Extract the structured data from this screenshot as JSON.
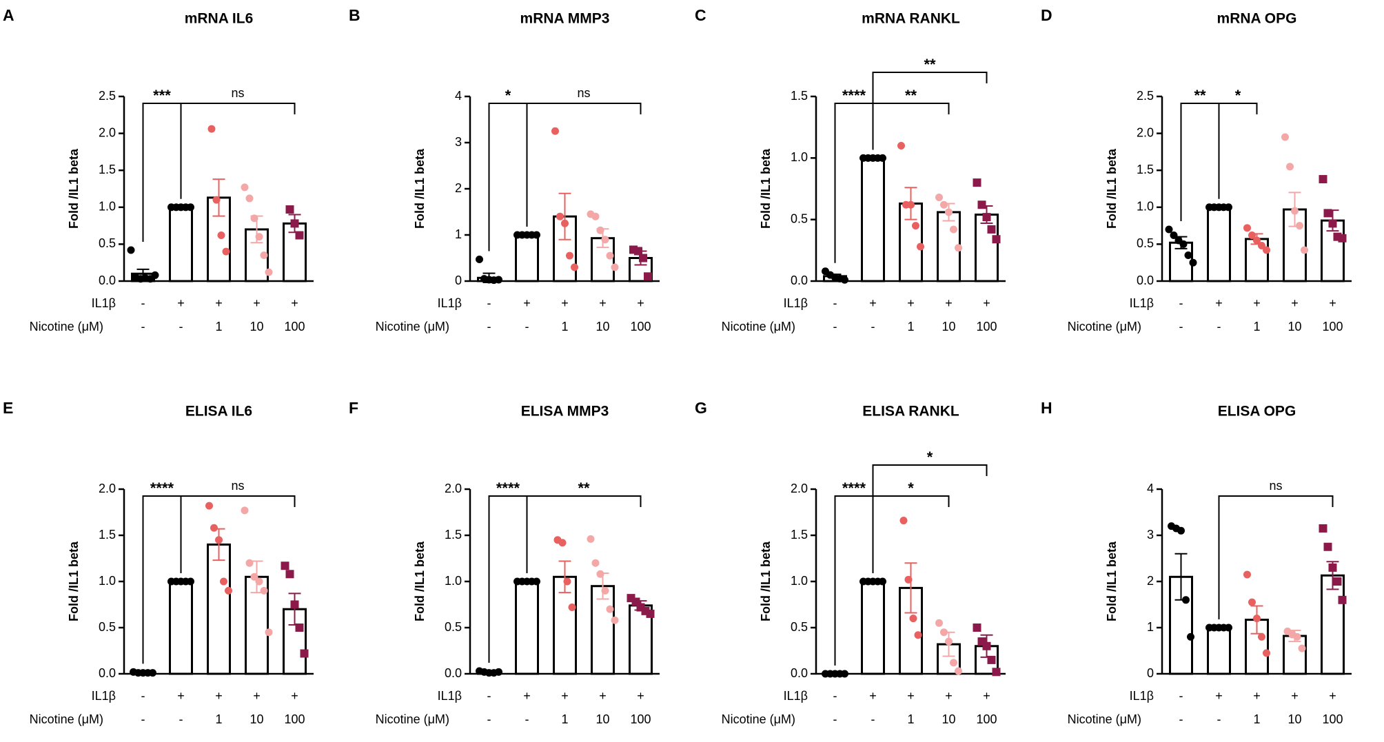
{
  "style": {
    "bar_color": "#ffffff",
    "point_colors": [
      "#000000",
      "#000000",
      "#e8605f",
      "#f4a7a7",
      "#8b1a4a"
    ],
    "point_markers": [
      "circle",
      "circle",
      "circle",
      "circle",
      "square"
    ]
  },
  "chart_data": [
    {
      "type": "bar",
      "letter": "A",
      "title": "mRNA IL6",
      "y_label": "Fold /IL1 beta",
      "conditions": [
        {
          "name": "IL1β",
          "labels": [
            "-",
            "+",
            "+",
            "+",
            "+"
          ]
        },
        {
          "name": "Nicotine (μM)",
          "labels": [
            "-",
            "-",
            "1",
            "10",
            "100"
          ]
        }
      ],
      "ylim": [
        0,
        2.5
      ],
      "yticks": [
        {
          "value": 0,
          "label": "0.0"
        },
        0.5,
        {
          "value": 1,
          "label": "1.0"
        },
        1.5,
        {
          "value": 2,
          "label": "2.0"
        },
        2.5
      ],
      "values": [
        0.1,
        1.0,
        1.13,
        0.7,
        0.78
      ],
      "errors": [
        0.06,
        0,
        0.25,
        0.18,
        0.12
      ],
      "points": [
        [
          0.42,
          0.05,
          0.03,
          0.04,
          0.03,
          0.08
        ],
        [
          1,
          1,
          1,
          1,
          1
        ],
        [
          2.06,
          1.1,
          0.62,
          0.4
        ],
        [
          1.27,
          1.12,
          0.85,
          0.6,
          0.35,
          0.12
        ],
        [
          0.97,
          0.78,
          0.62
        ]
      ],
      "brackets": [
        {
          "from": 0,
          "to": 1,
          "label": "***"
        },
        {
          "from": 1,
          "to": 4,
          "label": "ns"
        }
      ]
    },
    {
      "type": "bar",
      "letter": "B",
      "title": "mRNA MMP3",
      "y_label": "Fold /IL1 beta",
      "conditions": [
        {
          "name": "IL1β",
          "labels": [
            "-",
            "+",
            "+",
            "+",
            "+"
          ]
        },
        {
          "name": "Nicotine (μM)",
          "labels": [
            "-",
            "-",
            "1",
            "10",
            "100"
          ]
        }
      ],
      "ylim": [
        0,
        4
      ],
      "yticks": [
        0,
        1,
        2,
        3,
        4
      ],
      "values": [
        0.07,
        1,
        1.4,
        0.93,
        0.5
      ],
      "errors": [
        0.1,
        0,
        0.5,
        0.2,
        0.15
      ],
      "points": [
        [
          0.47,
          0.05,
          0.03,
          0.02,
          0.03
        ],
        [
          1,
          1,
          1,
          1,
          1
        ],
        [
          3.25,
          1.4,
          1.25,
          0.55,
          0.3
        ],
        [
          1.45,
          1.4,
          1.1,
          0.9,
          0.55,
          0.3
        ],
        [
          0.68,
          0.65,
          0.5,
          0.1
        ]
      ],
      "brackets": [
        {
          "from": 0,
          "to": 1,
          "label": "*"
        },
        {
          "from": 1,
          "to": 4,
          "label": "ns"
        }
      ]
    },
    {
      "type": "bar",
      "letter": "C",
      "title": "mRNA RANKL",
      "y_label": "Fold /IL1 beta",
      "conditions": [
        {
          "name": "IL1β",
          "labels": [
            "-",
            "+",
            "+",
            "+",
            "+"
          ]
        },
        {
          "name": "Nicotine (μM)",
          "labels": [
            "-",
            "-",
            "1",
            "10",
            "100"
          ]
        }
      ],
      "ylim": [
        0,
        1.5
      ],
      "yticks": [
        {
          "value": 0,
          "label": "0.0"
        },
        0.5,
        {
          "value": 1,
          "label": "1.0"
        },
        1.5
      ],
      "values": [
        0.04,
        1,
        0.63,
        0.56,
        0.54
      ],
      "errors": [
        0.015,
        0,
        0.13,
        0.07,
        0.07
      ],
      "points": [
        [
          0.08,
          0.05,
          0.03,
          0.02,
          0.01
        ],
        [
          1,
          1,
          1,
          1,
          1
        ],
        [
          1.1,
          0.62,
          0.62,
          0.45,
          0.28
        ],
        [
          0.68,
          0.62,
          0.56,
          0.42,
          0.27
        ],
        [
          0.8,
          0.62,
          0.52,
          0.42,
          0.34
        ]
      ],
      "brackets": [
        {
          "from": 0,
          "to": 1,
          "label": "****"
        },
        {
          "from": 1,
          "to": 3,
          "label": "**"
        },
        {
          "from": 1,
          "to": 4,
          "label": "**"
        }
      ]
    },
    {
      "type": "bar",
      "letter": "D",
      "title": "mRNA OPG",
      "y_label": "Fold /IL1 beta",
      "conditions": [
        {
          "name": "IL1β",
          "labels": [
            "-",
            "+",
            "+",
            "+",
            "+"
          ]
        },
        {
          "name": "Nicotine (μM)",
          "labels": [
            "-",
            "-",
            "1",
            "10",
            "100"
          ]
        }
      ],
      "ylim": [
        0,
        2.5
      ],
      "yticks": [
        {
          "value": 0,
          "label": "0.0"
        },
        0.5,
        {
          "value": 1,
          "label": "1.0"
        },
        1.5,
        {
          "value": 2,
          "label": "2.0"
        },
        2.5
      ],
      "values": [
        0.52,
        1,
        0.57,
        0.97,
        0.82
      ],
      "errors": [
        0.08,
        0,
        0.07,
        0.23,
        0.14
      ],
      "points": [
        [
          0.7,
          0.62,
          0.55,
          0.5,
          0.35,
          0.25
        ],
        [
          1,
          1,
          1,
          1,
          1
        ],
        [
          0.72,
          0.62,
          0.55,
          0.48,
          0.42
        ],
        [
          1.95,
          1.55,
          0.95,
          0.75,
          0.42
        ],
        [
          1.38,
          0.92,
          0.78,
          0.6,
          0.58
        ]
      ],
      "brackets": [
        {
          "from": 0,
          "to": 1,
          "label": "**"
        },
        {
          "from": 1,
          "to": 2,
          "label": "*"
        }
      ]
    },
    {
      "type": "bar",
      "letter": "E",
      "title": "ELISA IL6",
      "y_label": "Fold /IL1 beta",
      "conditions": [
        {
          "name": "IL1β",
          "labels": [
            "-",
            "+",
            "+",
            "+",
            "+"
          ]
        },
        {
          "name": "Nicotine (μM)",
          "labels": [
            "-",
            "-",
            "1",
            "10",
            "100"
          ]
        }
      ],
      "ylim": [
        0,
        2
      ],
      "yticks": [
        {
          "value": 0,
          "label": "0.0"
        },
        0.5,
        {
          "value": 1,
          "label": "1.0"
        },
        1.5,
        {
          "value": 2,
          "label": "2.0"
        }
      ],
      "values": [
        0.01,
        1,
        1.4,
        1.05,
        0.7
      ],
      "errors": [
        0.005,
        0,
        0.17,
        0.17,
        0.17
      ],
      "points": [
        [
          0.02,
          0.01,
          0.01,
          0.01,
          0.01
        ],
        [
          1,
          1,
          1,
          1,
          1
        ],
        [
          1.82,
          1.58,
          1.45,
          1.0,
          0.9
        ],
        [
          1.77,
          1.2,
          1.05,
          1.0,
          0.9,
          0.45
        ],
        [
          1.17,
          1.08,
          0.75,
          0.5,
          0.22
        ]
      ],
      "brackets": [
        {
          "from": 0,
          "to": 1,
          "label": "****"
        },
        {
          "from": 1,
          "to": 4,
          "label": "ns"
        }
      ]
    },
    {
      "type": "bar",
      "letter": "F",
      "title": "ELISA MMP3",
      "y_label": "Fold /IL1 beta",
      "conditions": [
        {
          "name": "IL1β",
          "labels": [
            "-",
            "+",
            "+",
            "+",
            "+"
          ]
        },
        {
          "name": "Nicotine (μM)",
          "labels": [
            "-",
            "-",
            "1",
            "10",
            "100"
          ]
        }
      ],
      "ylim": [
        0,
        2
      ],
      "yticks": [
        {
          "value": 0,
          "label": "0.0"
        },
        0.5,
        {
          "value": 1,
          "label": "1.0"
        },
        1.5,
        {
          "value": 2,
          "label": "2.0"
        }
      ],
      "values": [
        0.02,
        1,
        1.05,
        0.95,
        0.74
      ],
      "errors": [
        0.01,
        0,
        0.17,
        0.14,
        0.05
      ],
      "points": [
        [
          0.03,
          0.02,
          0.01,
          0.01,
          0.02
        ],
        [
          1,
          1,
          1,
          1,
          1
        ],
        [
          1.45,
          1.42,
          1.0,
          0.72
        ],
        [
          1.46,
          1.2,
          1.08,
          0.9,
          0.7,
          0.58
        ],
        [
          0.82,
          0.78,
          0.72,
          0.68,
          0.65
        ]
      ],
      "brackets": [
        {
          "from": 0,
          "to": 1,
          "label": "****"
        },
        {
          "from": 1,
          "to": 4,
          "label": "**"
        }
      ]
    },
    {
      "type": "bar",
      "letter": "G",
      "title": "ELISA RANKL",
      "y_label": "Fold /IL1 beta",
      "conditions": [
        {
          "name": "IL1β",
          "labels": [
            "-",
            "+",
            "+",
            "+",
            "+"
          ]
        },
        {
          "name": "Nicotine (μM)",
          "labels": [
            "-",
            "-",
            "1",
            "10",
            "100"
          ]
        }
      ],
      "ylim": [
        0,
        2
      ],
      "yticks": [
        {
          "value": 0,
          "label": "0.0"
        },
        0.5,
        {
          "value": 1,
          "label": "1.0"
        },
        1.5,
        {
          "value": 2,
          "label": "2.0"
        }
      ],
      "values": [
        0,
        1,
        0.93,
        0.32,
        0.3
      ],
      "errors": [
        0,
        0,
        0.27,
        0.13,
        0.12
      ],
      "points": [
        [
          0,
          0,
          0,
          0,
          0
        ],
        [
          1,
          1,
          1,
          1,
          1
        ],
        [
          1.66,
          1.02,
          0.6,
          0.42
        ],
        [
          0.55,
          0.45,
          0.35,
          0.12,
          0.03
        ],
        [
          0.5,
          0.35,
          0.3,
          0.15,
          0.02
        ]
      ],
      "brackets": [
        {
          "from": 0,
          "to": 1,
          "label": "****"
        },
        {
          "from": 1,
          "to": 3,
          "label": "*"
        },
        {
          "from": 1,
          "to": 4,
          "label": "*"
        }
      ]
    },
    {
      "type": "bar",
      "letter": "H",
      "title": "ELISA OPG",
      "y_label": "Fold /IL1 beta",
      "conditions": [
        {
          "name": "IL1β",
          "labels": [
            "-",
            "+",
            "+",
            "+",
            "+"
          ]
        },
        {
          "name": "Nicotine (μM)",
          "labels": [
            "-",
            "-",
            "1",
            "10",
            "100"
          ]
        }
      ],
      "ylim": [
        0,
        4
      ],
      "yticks": [
        0,
        1,
        2,
        3,
        4
      ],
      "values": [
        2.1,
        1,
        1.17,
        0.82,
        2.13
      ],
      "errors": [
        0.5,
        0,
        0.3,
        0.12,
        0.3
      ],
      "points": [
        [
          3.2,
          3.15,
          3.1,
          1.6,
          0.8
        ],
        [
          1,
          1,
          1,
          1,
          1
        ],
        [
          2.15,
          1.55,
          1.2,
          0.8,
          0.45
        ],
        [
          0.92,
          0.85,
          0.8,
          0.55
        ],
        [
          3.15,
          2.75,
          2.3,
          2.0,
          1.6
        ]
      ],
      "brackets": [
        {
          "from": 1,
          "to": 4,
          "label": "ns"
        }
      ]
    }
  ]
}
